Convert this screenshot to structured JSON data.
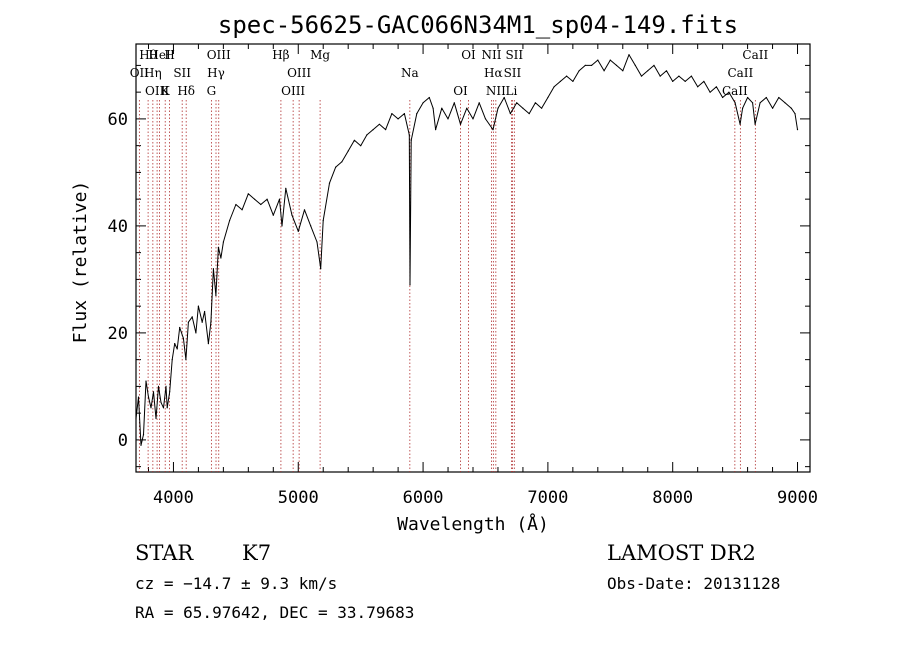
{
  "chart_data": {
    "type": "line",
    "title": "spec-56625-GAC066N34M1_sp04-149.fits",
    "xlabel": "Wavelength (Å)",
    "ylabel": "Flux (relative)",
    "xlim": [
      3700,
      9100
    ],
    "ylim": [
      -6,
      74
    ],
    "xticks": [
      4000,
      5000,
      6000,
      7000,
      8000,
      9000
    ],
    "yticks": [
      0,
      20,
      40,
      60
    ],
    "series": [
      {
        "points": [
          [
            3700,
            4
          ],
          [
            3720,
            8
          ],
          [
            3740,
            -1
          ],
          [
            3760,
            1
          ],
          [
            3780,
            11
          ],
          [
            3800,
            8
          ],
          [
            3820,
            6
          ],
          [
            3840,
            9
          ],
          [
            3860,
            4
          ],
          [
            3880,
            10
          ],
          [
            3900,
            7
          ],
          [
            3920,
            6
          ],
          [
            3940,
            10
          ],
          [
            3950,
            6
          ],
          [
            3970,
            9
          ],
          [
            3990,
            15
          ],
          [
            4010,
            18
          ],
          [
            4030,
            17
          ],
          [
            4050,
            21
          ],
          [
            4080,
            19
          ],
          [
            4100,
            15
          ],
          [
            4120,
            22
          ],
          [
            4150,
            23
          ],
          [
            4180,
            20
          ],
          [
            4200,
            25
          ],
          [
            4230,
            22
          ],
          [
            4250,
            24
          ],
          [
            4280,
            18
          ],
          [
            4300,
            22
          ],
          [
            4320,
            32
          ],
          [
            4340,
            27
          ],
          [
            4360,
            36
          ],
          [
            4380,
            34
          ],
          [
            4400,
            37
          ],
          [
            4450,
            41
          ],
          [
            4500,
            44
          ],
          [
            4550,
            43
          ],
          [
            4600,
            46
          ],
          [
            4650,
            45
          ],
          [
            4700,
            44
          ],
          [
            4750,
            45
          ],
          [
            4800,
            42
          ],
          [
            4850,
            45
          ],
          [
            4870,
            40
          ],
          [
            4900,
            47
          ],
          [
            4950,
            42
          ],
          [
            5000,
            39
          ],
          [
            5050,
            43
          ],
          [
            5100,
            40
          ],
          [
            5150,
            37
          ],
          [
            5180,
            32
          ],
          [
            5200,
            41
          ],
          [
            5250,
            48
          ],
          [
            5300,
            51
          ],
          [
            5350,
            52
          ],
          [
            5400,
            54
          ],
          [
            5450,
            56
          ],
          [
            5500,
            55
          ],
          [
            5550,
            57
          ],
          [
            5600,
            58
          ],
          [
            5650,
            59
          ],
          [
            5700,
            58
          ],
          [
            5750,
            61
          ],
          [
            5800,
            60
          ],
          [
            5850,
            61
          ],
          [
            5890,
            57
          ],
          [
            5895,
            29
          ],
          [
            5905,
            56
          ],
          [
            5950,
            61
          ],
          [
            6000,
            63
          ],
          [
            6050,
            64
          ],
          [
            6080,
            62
          ],
          [
            6100,
            58
          ],
          [
            6150,
            62
          ],
          [
            6200,
            60
          ],
          [
            6250,
            63
          ],
          [
            6300,
            59
          ],
          [
            6350,
            62
          ],
          [
            6400,
            60
          ],
          [
            6450,
            63
          ],
          [
            6500,
            60
          ],
          [
            6560,
            58
          ],
          [
            6600,
            62
          ],
          [
            6650,
            64
          ],
          [
            6700,
            61
          ],
          [
            6750,
            63
          ],
          [
            6800,
            62
          ],
          [
            6850,
            61
          ],
          [
            6900,
            63
          ],
          [
            6950,
            62
          ],
          [
            7000,
            64
          ],
          [
            7050,
            66
          ],
          [
            7100,
            67
          ],
          [
            7150,
            68
          ],
          [
            7200,
            67
          ],
          [
            7250,
            69
          ],
          [
            7300,
            70
          ],
          [
            7350,
            70
          ],
          [
            7400,
            71
          ],
          [
            7450,
            69
          ],
          [
            7500,
            71
          ],
          [
            7550,
            70
          ],
          [
            7600,
            69
          ],
          [
            7650,
            72
          ],
          [
            7700,
            70
          ],
          [
            7750,
            68
          ],
          [
            7800,
            69
          ],
          [
            7850,
            70
          ],
          [
            7900,
            68
          ],
          [
            7950,
            69
          ],
          [
            8000,
            67
          ],
          [
            8050,
            68
          ],
          [
            8100,
            67
          ],
          [
            8150,
            68
          ],
          [
            8200,
            66
          ],
          [
            8250,
            67
          ],
          [
            8300,
            65
          ],
          [
            8350,
            66
          ],
          [
            8400,
            64
          ],
          [
            8450,
            65
          ],
          [
            8500,
            63
          ],
          [
            8540,
            59
          ],
          [
            8560,
            62
          ],
          [
            8600,
            64
          ],
          [
            8640,
            63
          ],
          [
            8660,
            59
          ],
          [
            8700,
            63
          ],
          [
            8750,
            64
          ],
          [
            8800,
            62
          ],
          [
            8850,
            64
          ],
          [
            8900,
            63
          ],
          [
            8950,
            62
          ],
          [
            8980,
            61
          ],
          [
            9000,
            58
          ]
        ]
      }
    ],
    "lines": [
      {
        "label": "Hθ",
        "x": 3797
      },
      {
        "label": "OII",
        "x": 3727
      },
      {
        "label": "OIII",
        "x": 3869
      },
      {
        "label": "HeI",
        "x": 3889
      },
      {
        "label": "Hη",
        "x": 3835
      },
      {
        "label": "K",
        "x": 3934
      },
      {
        "label": "H",
        "x": 3969
      },
      {
        "label": "SII",
        "x": 4070
      },
      {
        "label": "Hδ",
        "x": 4102
      },
      {
        "label": "OIII",
        "x": 4363
      },
      {
        "label": "Hγ",
        "x": 4341
      },
      {
        "label": "G",
        "x": 4304
      },
      {
        "label": "Hβ",
        "x": 4861
      },
      {
        "label": "OIII",
        "x": 5007
      },
      {
        "label": "OIII",
        "x": 4959
      },
      {
        "label": "Mg",
        "x": 5175
      },
      {
        "label": "Na",
        "x": 5894
      },
      {
        "label": "OI",
        "x": 6300
      },
      {
        "label": "OI",
        "x": 6364
      },
      {
        "label": "Hα",
        "x": 6563
      },
      {
        "label": "NII",
        "x": 6583
      },
      {
        "label": "NII",
        "x": 6548
      },
      {
        "label": "SII",
        "x": 6716
      },
      {
        "label": "Li",
        "x": 6708
      },
      {
        "label": "SII",
        "x": 6731
      },
      {
        "label": "CaII",
        "x": 8542
      },
      {
        "label": "CaII",
        "x": 8498
      },
      {
        "label": "CaII",
        "x": 8662
      }
    ],
    "grid": false,
    "legend": "none"
  },
  "info": {
    "class": "STAR",
    "subclass": "K7",
    "survey": "LAMOST DR2",
    "cz": "cz = −14.7 ± 9.3 km/s",
    "obs_date": "Obs-Date: 20131128",
    "radec": "RA =  65.97642, DEC =  33.79683"
  }
}
